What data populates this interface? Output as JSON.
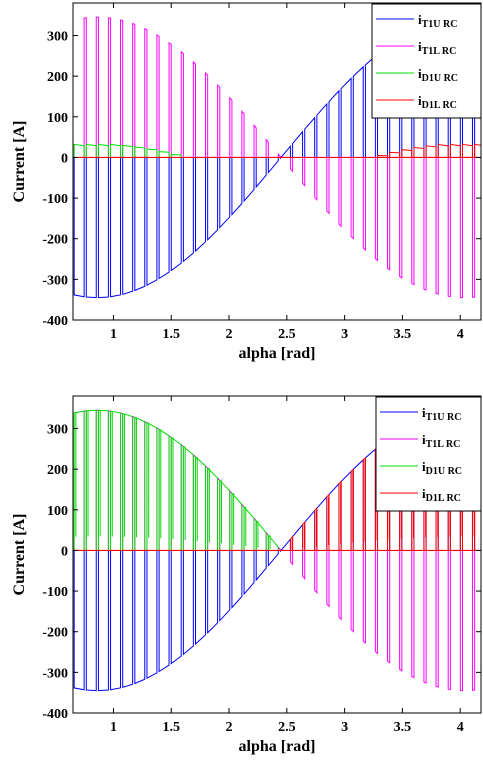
{
  "colors": {
    "i_T1U": "#0000ff",
    "i_T1L": "#ff00ff",
    "i_D1U": "#00dd00",
    "i_D1L": "#ff0000"
  },
  "chart_data": [
    {
      "type": "line",
      "xlabel": "alpha [rad]",
      "ylabel": "Current [A]",
      "xlim": [
        0.65,
        4.18
      ],
      "ylim": [
        -400,
        380
      ],
      "xticks": [
        1,
        1.5,
        2,
        2.5,
        3,
        3.5,
        4
      ],
      "yticks": [
        -400,
        -300,
        -200,
        -100,
        0,
        100,
        200,
        300
      ],
      "grid": false,
      "legend_position": "top-right",
      "series": [
        {
          "id": "i_T1U",
          "name": "i",
          "subscript": "T1U RC",
          "color": "#0000ff",
          "description": "pulsed current, negative envelope until ~2.4 rad then positive"
        },
        {
          "id": "i_T1L",
          "name": "i",
          "subscript": "T1L RC",
          "color": "#ff00ff",
          "description": "pulsed current, positive envelope until ~2.4 rad then negative"
        },
        {
          "id": "i_D1U",
          "name": "i",
          "subscript": "D1U RC",
          "color": "#00dd00",
          "description": "small positive pulses ~30 A near alpha 0.8-1.3"
        },
        {
          "id": "i_D1L",
          "name": "i",
          "subscript": "D1L RC",
          "color": "#ff0000",
          "description": "small positive pulses ~30 A near alpha 3.5-4.2"
        }
      ],
      "envelope": {
        "amplitude": 345,
        "zero_crossing": 2.45,
        "pulse_period": 0.105,
        "diode_peak": 32
      }
    },
    {
      "type": "line",
      "xlabel": "alpha [rad]",
      "ylabel": "Current [A]",
      "xlim": [
        0.65,
        4.18
      ],
      "ylim": [
        -400,
        380
      ],
      "xticks": [
        1,
        1.5,
        2,
        2.5,
        3,
        3.5,
        4
      ],
      "yticks": [
        -400,
        -300,
        -200,
        -100,
        0,
        100,
        200,
        300
      ],
      "grid": false,
      "legend_position": "top-right",
      "series": [
        {
          "id": "i_T1U",
          "name": "i",
          "subscript": "T1U RC",
          "color": "#0000ff",
          "description": "pulsed current, negative envelope until ~2.4 rad then positive"
        },
        {
          "id": "i_T1L",
          "name": "i",
          "subscript": "T1L RC",
          "color": "#ff00ff",
          "description": "pulsed current, positive envelope until ~2.4 rad then negative"
        },
        {
          "id": "i_D1U",
          "name": "i",
          "subscript": "D1U RC",
          "color": "#00dd00",
          "description": "large positive pulses following positive envelope up to ~2.4 rad"
        },
        {
          "id": "i_D1L",
          "name": "i",
          "subscript": "D1L RC",
          "color": "#ff0000",
          "description": "large positive pulses following positive envelope after ~2.4 rad"
        }
      ],
      "envelope": {
        "amplitude": 345,
        "zero_crossing": 2.45,
        "pulse_period": 0.105,
        "diode_peak": 345
      }
    }
  ]
}
